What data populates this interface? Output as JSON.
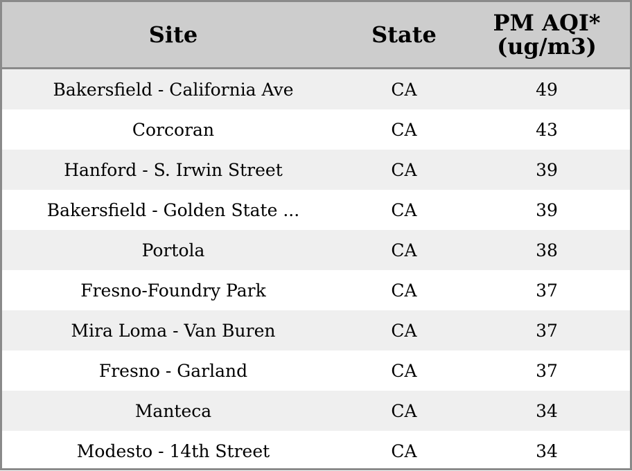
{
  "chart_data": {
    "type": "table",
    "title": "",
    "columns": [
      "Site",
      "State",
      "PM AQI* (ug/m3)"
    ],
    "rows": [
      {
        "site": "Bakersfield - California Ave",
        "state": "CA",
        "pm_aqi": "49"
      },
      {
        "site": "Corcoran",
        "state": "CA",
        "pm_aqi": "43"
      },
      {
        "site": "Hanford - S. Irwin Street",
        "state": "CA",
        "pm_aqi": "39"
      },
      {
        "site": "Bakersfield - Golden State ...",
        "state": "CA",
        "pm_aqi": "39"
      },
      {
        "site": "Portola",
        "state": "CA",
        "pm_aqi": "38"
      },
      {
        "site": "Fresno-Foundry Park",
        "state": "CA",
        "pm_aqi": "37"
      },
      {
        "site": "Mira Loma - Van Buren",
        "state": "CA",
        "pm_aqi": "37"
      },
      {
        "site": "Fresno - Garland",
        "state": "CA",
        "pm_aqi": "37"
      },
      {
        "site": "Manteca",
        "state": "CA",
        "pm_aqi": "34"
      },
      {
        "site": "Modesto - 14th Street",
        "state": "CA",
        "pm_aqi": "34"
      }
    ]
  },
  "header": {
    "site": "Site",
    "state": "State",
    "pm_line1": "PM AQI*",
    "pm_line2": "(ug/m3)"
  },
  "colors": {
    "header_bg": "#cdcdcd",
    "border": "#8a8a8a",
    "alt_row": "#efefef",
    "row": "#ffffff"
  }
}
